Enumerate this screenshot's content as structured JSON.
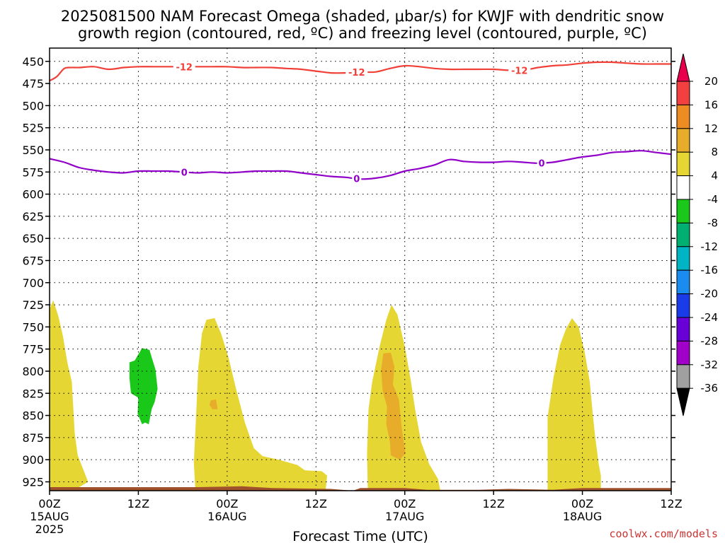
{
  "title": {
    "line1": "2025081500 NAM Forecast Omega (shaded, μbar/s) for KWJF with dendritic snow",
    "line2": "growth region (contoured, red, ºC) and freezing level (contoured, purple, ºC)"
  },
  "credit": "coolwx.com/models",
  "colors": {
    "dgz_line": "#f04038",
    "freezing_line": "#9000c8",
    "terrain": "#a0522d",
    "grid": "#000000"
  },
  "chart_data": {
    "type": "heatmap",
    "xlabel": "Forecast Time (UTC)",
    "x_ticks": [
      {
        "hour": 0,
        "lines": [
          "00Z",
          "15AUG",
          "2025"
        ]
      },
      {
        "hour": 12,
        "lines": [
          "12Z"
        ]
      },
      {
        "hour": 24,
        "lines": [
          "00Z",
          "16AUG"
        ]
      },
      {
        "hour": 36,
        "lines": [
          "12Z"
        ]
      },
      {
        "hour": 48,
        "lines": [
          "00Z",
          "17AUG"
        ]
      },
      {
        "hour": 60,
        "lines": [
          "12Z"
        ]
      },
      {
        "hour": 72,
        "lines": [
          "00Z",
          "18AUG"
        ]
      },
      {
        "hour": 84,
        "lines": [
          "12Z"
        ]
      }
    ],
    "xlim": [
      0,
      84
    ],
    "y_axis": {
      "inverted": true,
      "range": [
        435,
        935
      ],
      "ticks": [
        450,
        475,
        500,
        525,
        550,
        575,
        600,
        625,
        650,
        675,
        700,
        725,
        750,
        775,
        800,
        825,
        850,
        875,
        900,
        925
      ]
    },
    "grid": "dotted",
    "colorbar": {
      "labels": [
        "20",
        "16",
        "12",
        "8",
        "4",
        "-4",
        "-8",
        "-12",
        "-16",
        "-20",
        "-24",
        "-28",
        "-32",
        "-36"
      ],
      "colors": [
        "#e8004c",
        "#f24040",
        "#ec8c22",
        "#e6ac2a",
        "#e6d634",
        "#ffffff",
        "#1ac81a",
        "#00b070",
        "#00b4c4",
        "#1a8cf0",
        "#1a3ce8",
        "#6a00d8",
        "#a000c8",
        "#a0a0a0",
        "#000000"
      ]
    },
    "series": [
      {
        "name": "-12",
        "contour_labels": [
          {
            "hour": 18.2,
            "value": "-12"
          },
          {
            "hour": 41.5,
            "value": "-12"
          },
          {
            "hour": 63.5,
            "value": "-12"
          }
        ],
        "points": [
          [
            0,
            472
          ],
          [
            1,
            467
          ],
          [
            2,
            458
          ],
          [
            3,
            457
          ],
          [
            4,
            457
          ],
          [
            6,
            456
          ],
          [
            8,
            459
          ],
          [
            10,
            457
          ],
          [
            12,
            456
          ],
          [
            14,
            456
          ],
          [
            16,
            456
          ],
          [
            18,
            456
          ],
          [
            20,
            456
          ],
          [
            22,
            456
          ],
          [
            24,
            456
          ],
          [
            26,
            457
          ],
          [
            28,
            457
          ],
          [
            30,
            457
          ],
          [
            32,
            458
          ],
          [
            34,
            459
          ],
          [
            36,
            461
          ],
          [
            38,
            463
          ],
          [
            40,
            463
          ],
          [
            42,
            462
          ],
          [
            44,
            462
          ],
          [
            46,
            458
          ],
          [
            48,
            455
          ],
          [
            50,
            456
          ],
          [
            52,
            458
          ],
          [
            54,
            459
          ],
          [
            56,
            459
          ],
          [
            58,
            459
          ],
          [
            60,
            459
          ],
          [
            62,
            460
          ],
          [
            64,
            460
          ],
          [
            66,
            457
          ],
          [
            68,
            455
          ],
          [
            70,
            454
          ],
          [
            72,
            452
          ],
          [
            74,
            451
          ],
          [
            76,
            451
          ],
          [
            78,
            452
          ],
          [
            80,
            453
          ],
          [
            82,
            453
          ],
          [
            84,
            453
          ]
        ]
      },
      {
        "name": "0",
        "contour_labels": [
          {
            "hour": 18.2,
            "value": "0"
          },
          {
            "hour": 41.5,
            "value": "0"
          },
          {
            "hour": 66.5,
            "value": "0"
          }
        ],
        "points": [
          [
            0,
            560
          ],
          [
            2,
            564
          ],
          [
            4,
            570
          ],
          [
            6,
            573
          ],
          [
            8,
            575
          ],
          [
            10,
            576
          ],
          [
            12,
            574
          ],
          [
            14,
            574
          ],
          [
            16,
            574
          ],
          [
            18,
            575
          ],
          [
            20,
            576
          ],
          [
            22,
            575
          ],
          [
            24,
            576
          ],
          [
            26,
            575
          ],
          [
            28,
            574
          ],
          [
            30,
            574
          ],
          [
            32,
            574
          ],
          [
            34,
            576
          ],
          [
            36,
            578
          ],
          [
            38,
            580
          ],
          [
            40,
            581
          ],
          [
            42,
            583
          ],
          [
            44,
            582
          ],
          [
            46,
            579
          ],
          [
            48,
            574
          ],
          [
            50,
            571
          ],
          [
            52,
            567
          ],
          [
            54,
            561
          ],
          [
            56,
            563
          ],
          [
            58,
            564
          ],
          [
            60,
            564
          ],
          [
            62,
            563
          ],
          [
            64,
            564
          ],
          [
            66,
            565
          ],
          [
            68,
            564
          ],
          [
            70,
            561
          ],
          [
            72,
            558
          ],
          [
            74,
            556
          ],
          [
            76,
            553
          ],
          [
            78,
            552
          ],
          [
            80,
            551
          ],
          [
            82,
            553
          ],
          [
            84,
            555
          ]
        ]
      }
    ],
    "omega_regions": [
      {
        "category": "4 to 8",
        "points": [
          [
            0,
            730
          ],
          [
            0.5,
            720
          ],
          [
            1.2,
            738
          ],
          [
            1.8,
            760
          ],
          [
            2.4,
            790
          ],
          [
            3,
            812
          ],
          [
            3.2,
            840
          ],
          [
            3.4,
            870
          ],
          [
            3.8,
            895
          ],
          [
            4.6,
            912
          ],
          [
            5.2,
            925
          ],
          [
            3.2,
            935
          ],
          [
            0,
            935
          ]
        ]
      },
      {
        "category": "-8 to -4",
        "points": [
          [
            10.8,
            790
          ],
          [
            11.5,
            788
          ],
          [
            12.5,
            774
          ],
          [
            13.5,
            776
          ],
          [
            14.3,
            798
          ],
          [
            14.6,
            820
          ],
          [
            14.2,
            835
          ],
          [
            13.8,
            843
          ],
          [
            13.4,
            860
          ],
          [
            12.9,
            858
          ],
          [
            12.5,
            860
          ],
          [
            11.9,
            848
          ],
          [
            12,
            830
          ],
          [
            11,
            825
          ],
          [
            10.8,
            808
          ]
        ]
      },
      {
        "category": "4 to 8",
        "points": [
          [
            19.8,
            850
          ],
          [
            20.1,
            795
          ],
          [
            20.6,
            757
          ],
          [
            21.2,
            742
          ],
          [
            22.3,
            740
          ],
          [
            23.2,
            758
          ],
          [
            24.2,
            785
          ],
          [
            25.2,
            820
          ],
          [
            26.4,
            858
          ],
          [
            27.6,
            887
          ],
          [
            28.8,
            896
          ],
          [
            31,
            900
          ],
          [
            33.5,
            906
          ],
          [
            34.5,
            912
          ],
          [
            36.8,
            913
          ],
          [
            37.5,
            918
          ],
          [
            37.3,
            935
          ],
          [
            19.7,
            935
          ],
          [
            19.5,
            903
          ]
        ]
      },
      {
        "category": "8 to 12",
        "points": [
          [
            21.8,
            833
          ],
          [
            22.5,
            832
          ],
          [
            22.7,
            843
          ],
          [
            22,
            843
          ],
          [
            21.6,
            838
          ]
        ]
      },
      {
        "category": "4 to 8",
        "points": [
          [
            43.1,
            843
          ],
          [
            43.6,
            812
          ],
          [
            44.6,
            772
          ],
          [
            45.5,
            742
          ],
          [
            46.2,
            725
          ],
          [
            47,
            736
          ],
          [
            48,
            772
          ],
          [
            48.8,
            810
          ],
          [
            49.4,
            843
          ],
          [
            50.2,
            880
          ],
          [
            51.3,
            905
          ],
          [
            52.5,
            922
          ],
          [
            52.8,
            935
          ],
          [
            43,
            935
          ],
          [
            42.9,
            893
          ]
        ]
      },
      {
        "category": "8 to 12",
        "points": [
          [
            45.1,
            780
          ],
          [
            46.1,
            779
          ],
          [
            46.6,
            795
          ],
          [
            46.4,
            815
          ],
          [
            47.2,
            832
          ],
          [
            47.6,
            865
          ],
          [
            48.1,
            893
          ],
          [
            47.3,
            900
          ],
          [
            46.1,
            895
          ],
          [
            46,
            880
          ],
          [
            45.5,
            860
          ],
          [
            45.6,
            840
          ],
          [
            45,
            822
          ],
          [
            44.8,
            798
          ]
        ]
      },
      {
        "category": "4 to 8",
        "points": [
          [
            67.3,
            852
          ],
          [
            68.1,
            807
          ],
          [
            69,
            770
          ],
          [
            69.8,
            752
          ],
          [
            70.6,
            740
          ],
          [
            71.5,
            750
          ],
          [
            72.3,
            778
          ],
          [
            73,
            812
          ],
          [
            73.4,
            848
          ],
          [
            73.7,
            872
          ],
          [
            74.2,
            905
          ],
          [
            74.5,
            918
          ],
          [
            74.5,
            935
          ],
          [
            67.3,
            935
          ]
        ]
      }
    ],
    "terrain": {
      "points": [
        [
          0,
          931
        ],
        [
          10,
          931
        ],
        [
          20,
          931
        ],
        [
          26,
          930
        ],
        [
          30,
          932
        ],
        [
          38,
          933
        ],
        [
          41,
          935
        ],
        [
          42,
          932
        ],
        [
          46,
          932
        ],
        [
          48,
          932
        ],
        [
          51,
          934
        ],
        [
          58,
          934
        ],
        [
          62,
          933
        ],
        [
          68,
          934
        ],
        [
          72,
          932
        ],
        [
          84,
          932
        ]
      ]
    }
  }
}
